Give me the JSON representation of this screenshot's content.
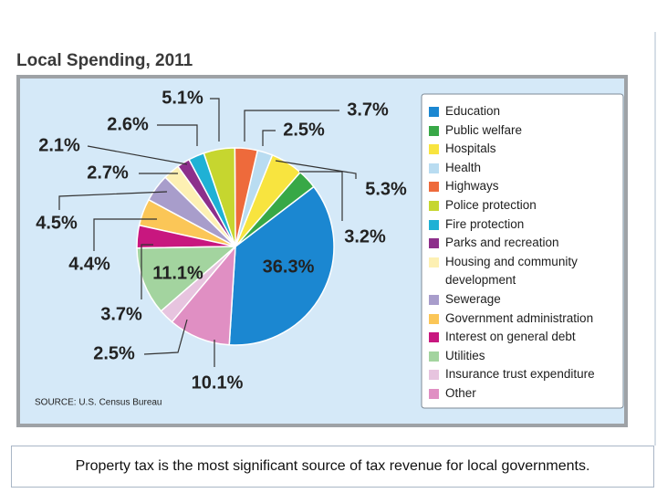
{
  "chart_data": {
    "type": "pie",
    "title": "Local Spending, 2011",
    "categories": [
      "Education",
      "Public welfare",
      "Hospitals",
      "Health",
      "Highways",
      "Police protection",
      "Fire protection",
      "Parks and recreation",
      "Housing and community development",
      "Sewerage",
      "Government administration",
      "Interest on general debt",
      "Utilities",
      "Insurance trust expenditure",
      "Other"
    ],
    "values": [
      36.3,
      3.2,
      5.3,
      2.5,
      3.7,
      5.1,
      2.6,
      2.1,
      2.7,
      4.5,
      4.4,
      3.7,
      11.1,
      2.5,
      10.1
    ],
    "value_labels": [
      "36.3%",
      "3.2%",
      "5.3%",
      "2.5%",
      "3.7%",
      "5.1%",
      "2.6%",
      "2.1%",
      "2.7%",
      "4.5%",
      "4.4%",
      "3.7%",
      "11.1%",
      "2.5%",
      "10.1%"
    ],
    "colors": [
      "#1b87d1",
      "#38a847",
      "#f8e43f",
      "#b9dcf1",
      "#ee6a3b",
      "#c6d62f",
      "#1fb1d5",
      "#8d2f8b",
      "#fdf0b3",
      "#a89dcb",
      "#fbc657",
      "#c8177f",
      "#a3d49f",
      "#e7c4df",
      "#e08fc3"
    ],
    "source": "SOURCE: U.S. Census Bureau",
    "caption": "Property tax is the most significant source of tax revenue for local governments."
  }
}
